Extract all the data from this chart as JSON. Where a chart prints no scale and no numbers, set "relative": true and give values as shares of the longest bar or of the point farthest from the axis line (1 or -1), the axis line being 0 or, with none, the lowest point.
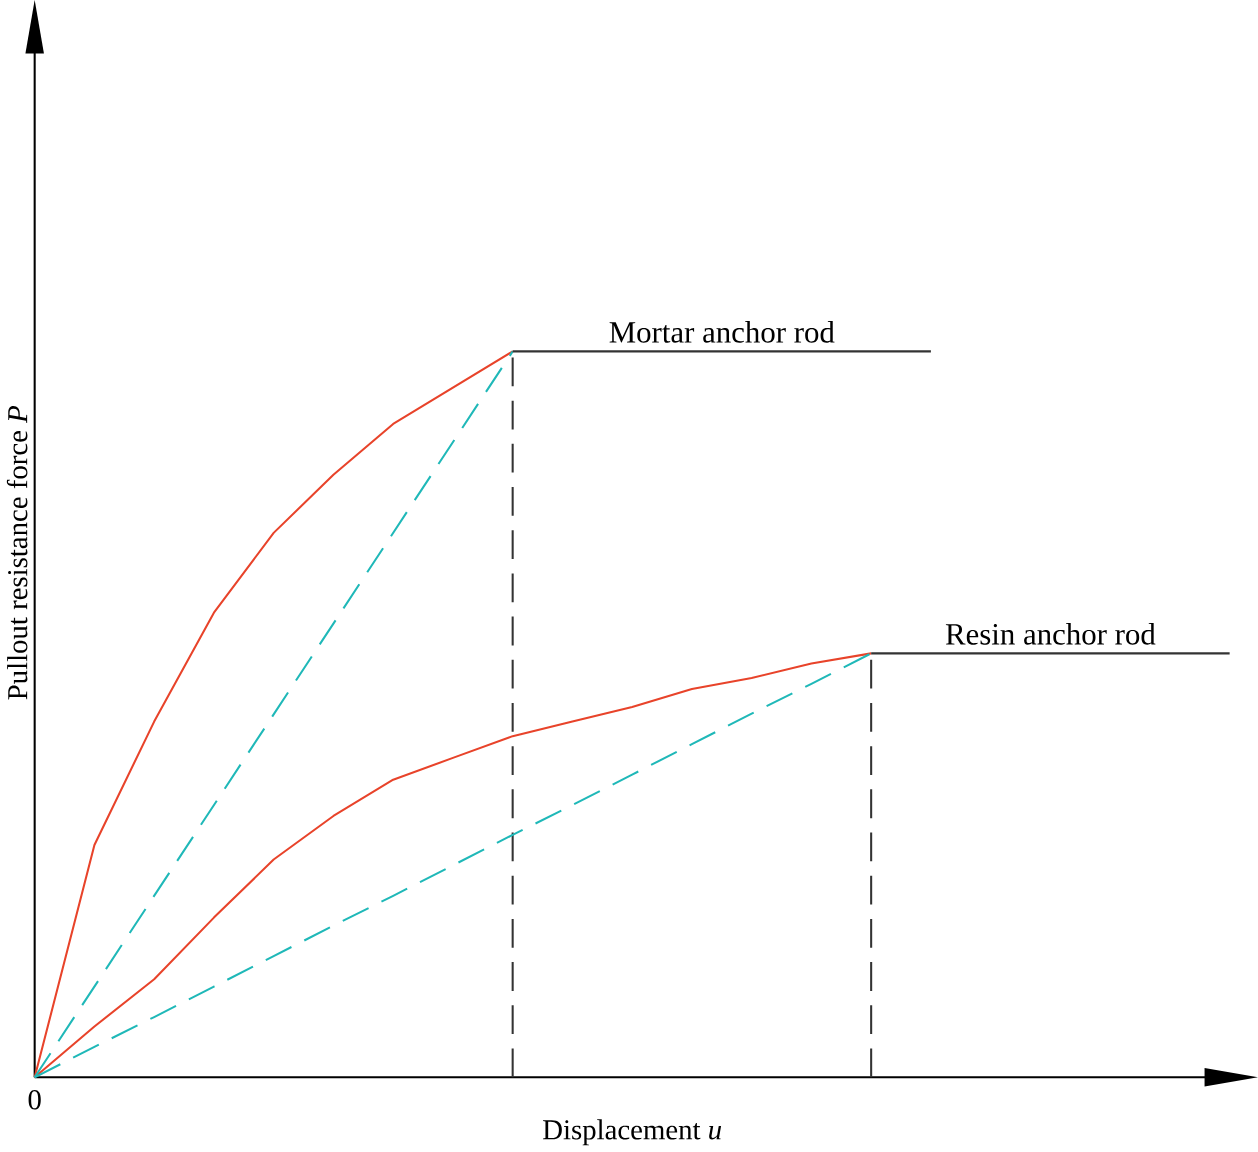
{
  "chart_data": {
    "type": "line",
    "relative": true,
    "xlabel": "Displacement *u*",
    "ylabel": "Pullout resistance force *P*",
    "marker": "none",
    "categories": [
      null,
      null,
      null,
      null,
      null,
      null,
      null,
      null,
      null,
      null,
      null,
      null,
      null,
      null,
      null,
      null,
      null,
      null,
      null,
      null,
      null
    ],
    "series": [
      {
        "color": "#e8432a",
        "line_style": "solid",
        "values": [
          0,
          0.32,
          0.49,
          0.64,
          0.75,
          0.83,
          0.9,
          0.95,
          1.0,
          null,
          null,
          null,
          null,
          null,
          null,
          null,
          null,
          null,
          null,
          null,
          null
        ]
      },
      {
        "color": "#e8432a",
        "line_style": "solid",
        "values": [
          0,
          0.07,
          0.135,
          0.22,
          0.3,
          0.36,
          0.41,
          0.44,
          0.47,
          0.49,
          0.51,
          0.535,
          0.55,
          0.57,
          0.584,
          null,
          null,
          null,
          null,
          null,
          null
        ]
      },
      {
        "color": "#1fb8b8",
        "line_style": "dashed",
        "values": [
          0,
          0.125,
          0.25,
          0.375,
          0.5,
          0.625,
          0.75,
          0.875,
          1.0,
          null,
          null,
          null,
          null,
          null,
          null,
          null,
          null,
          null,
          null,
          null,
          null
        ]
      },
      {
        "color": "#1fb8b8",
        "line_style": "dashed",
        "values": [
          0,
          0.042,
          0.083,
          0.125,
          0.167,
          0.209,
          0.25,
          0.292,
          0.334,
          0.375,
          0.417,
          0.459,
          0.501,
          0.542,
          0.584,
          null,
          null,
          null,
          null,
          null,
          null
        ]
      },
      {
        "name": "Mortar anchor rod",
        "color": "#333333",
        "line_style": "solid",
        "values": [
          null,
          null,
          null,
          null,
          null,
          null,
          null,
          null,
          1.0,
          1.0,
          1.0,
          1.0,
          1.0,
          1.0,
          1.0,
          1.0,
          null,
          null,
          null,
          null,
          null
        ]
      },
      {
        "name": "Resin anchor rod",
        "color": "#333333",
        "line_style": "solid",
        "values": [
          null,
          null,
          null,
          null,
          null,
          null,
          null,
          null,
          null,
          null,
          null,
          null,
          null,
          null,
          0.584,
          0.584,
          0.584,
          0.584,
          0.584,
          0.584,
          0.584
        ]
      }
    ],
    "annotations": [
      "0"
    ]
  }
}
